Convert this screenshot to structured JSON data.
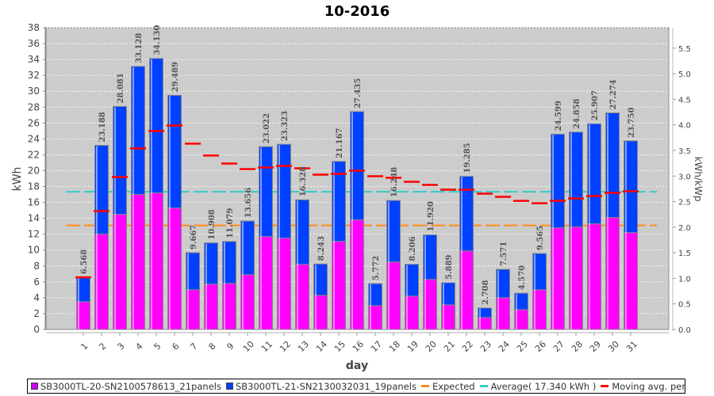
{
  "chart_data": {
    "type": "bar",
    "stacked": true,
    "title": "10-2016",
    "xlabel": "day",
    "ylabel": "kWh",
    "y2label": "kWh/kWp",
    "ylim": [
      0,
      38
    ],
    "y2lim": [
      0,
      5.9
    ],
    "yticks": [
      "0",
      "2",
      "4",
      "6",
      "8",
      "10",
      "12",
      "14",
      "16",
      "18",
      "20",
      "22",
      "24",
      "26",
      "28",
      "30",
      "32",
      "34",
      "36",
      "38"
    ],
    "y2ticks": [
      "0.0",
      "0.5",
      "1.0",
      "1.5",
      "2.0",
      "2.5",
      "3.0",
      "3.5",
      "4.0",
      "4.5",
      "5.0",
      "5.5"
    ],
    "categories": [
      "1",
      "2",
      "3",
      "4",
      "5",
      "6",
      "7",
      "8",
      "9",
      "10",
      "11",
      "12",
      "13",
      "14",
      "15",
      "16",
      "17",
      "18",
      "19",
      "20",
      "21",
      "22",
      "23",
      "24",
      "25",
      "26",
      "27",
      "28",
      "29",
      "30",
      "31"
    ],
    "totals": [
      6.568,
      23.188,
      28.081,
      33.128,
      34.13,
      29.489,
      9.667,
      10.908,
      11.079,
      13.656,
      23.022,
      23.323,
      16.328,
      8.243,
      21.167,
      27.435,
      5.772,
      16.248,
      8.206,
      11.92,
      5.889,
      19.285,
      2.708,
      7.571,
      4.57,
      9.565,
      24.599,
      24.858,
      25.907,
      27.274,
      23.75
    ],
    "total_labels": [
      "6.568",
      "23.188",
      "28.081",
      "33.128",
      "34.130",
      "29.489",
      "9.667",
      "10.908",
      "11.079",
      "13.656",
      "23.022",
      "23.323",
      "16.328",
      "8.243",
      "21.167",
      "27.435",
      "5.772",
      "16.248",
      "8.206",
      "11.920",
      "5.889",
      "19.285",
      "2.708",
      "7.571",
      "4.570",
      "9.565",
      "24.599",
      "24.858",
      "25.907",
      "27.274",
      "23.750"
    ],
    "series": [
      {
        "name": "SB3000TL-20-SN2100578613_21panels",
        "color": "#ff00ff",
        "values": [
          3.5,
          12.0,
          14.5,
          17.0,
          17.2,
          15.3,
          5.0,
          5.7,
          5.8,
          6.9,
          11.7,
          11.5,
          8.2,
          4.3,
          11.1,
          13.8,
          3.0,
          8.5,
          4.2,
          6.3,
          3.1,
          9.9,
          1.5,
          4.0,
          2.5,
          5.0,
          12.8,
          12.9,
          13.3,
          14.1,
          12.2
        ]
      },
      {
        "name": "SB3000TL-21-SN2130032031_19panels",
        "color": "#0040ff",
        "values": [
          3.068,
          11.188,
          13.581,
          16.128,
          16.93,
          14.189,
          4.667,
          5.208,
          5.279,
          6.756,
          11.322,
          11.823,
          8.128,
          3.943,
          10.067,
          13.635,
          2.772,
          7.748,
          4.006,
          5.62,
          2.789,
          9.385,
          1.208,
          3.571,
          2.07,
          4.565,
          11.799,
          11.958,
          12.607,
          13.174,
          11.55
        ]
      }
    ],
    "lines": {
      "expected": {
        "name": "Expected",
        "value": 13.1,
        "color": "#ff8c1a"
      },
      "average": {
        "name": "Average( 17.340 kWh )",
        "value": 17.34,
        "color": "#33cccc"
      },
      "moving_avg": {
        "name": "Moving avg. per day.",
        "color": "#ff0000",
        "values": [
          6.57,
          14.9,
          19.2,
          22.8,
          25.0,
          25.7,
          23.4,
          21.9,
          20.9,
          20.2,
          20.4,
          20.6,
          20.3,
          19.5,
          19.6,
          20.0,
          19.3,
          19.1,
          18.6,
          18.2,
          17.6,
          17.6,
          17.1,
          16.7,
          16.2,
          15.9,
          16.2,
          16.5,
          16.8,
          17.2,
          17.4
        ]
      }
    },
    "grid": true,
    "legend_position": "bottom"
  },
  "legend": [
    {
      "label": "SB3000TL-20-SN2100578613_21panels",
      "kind": "box",
      "color": "#cc00ff"
    },
    {
      "label": "SB3000TL-21-SN2130032031_19panels",
      "kind": "box",
      "color": "#0040ff"
    },
    {
      "label": "Expected",
      "kind": "line",
      "color": "#ff8c1a"
    },
    {
      "label": "Average( 17.340 kWh )",
      "kind": "line",
      "color": "#33cccc"
    },
    {
      "label": "Moving avg. per day.",
      "kind": "line",
      "color": "#ff0000"
    }
  ]
}
